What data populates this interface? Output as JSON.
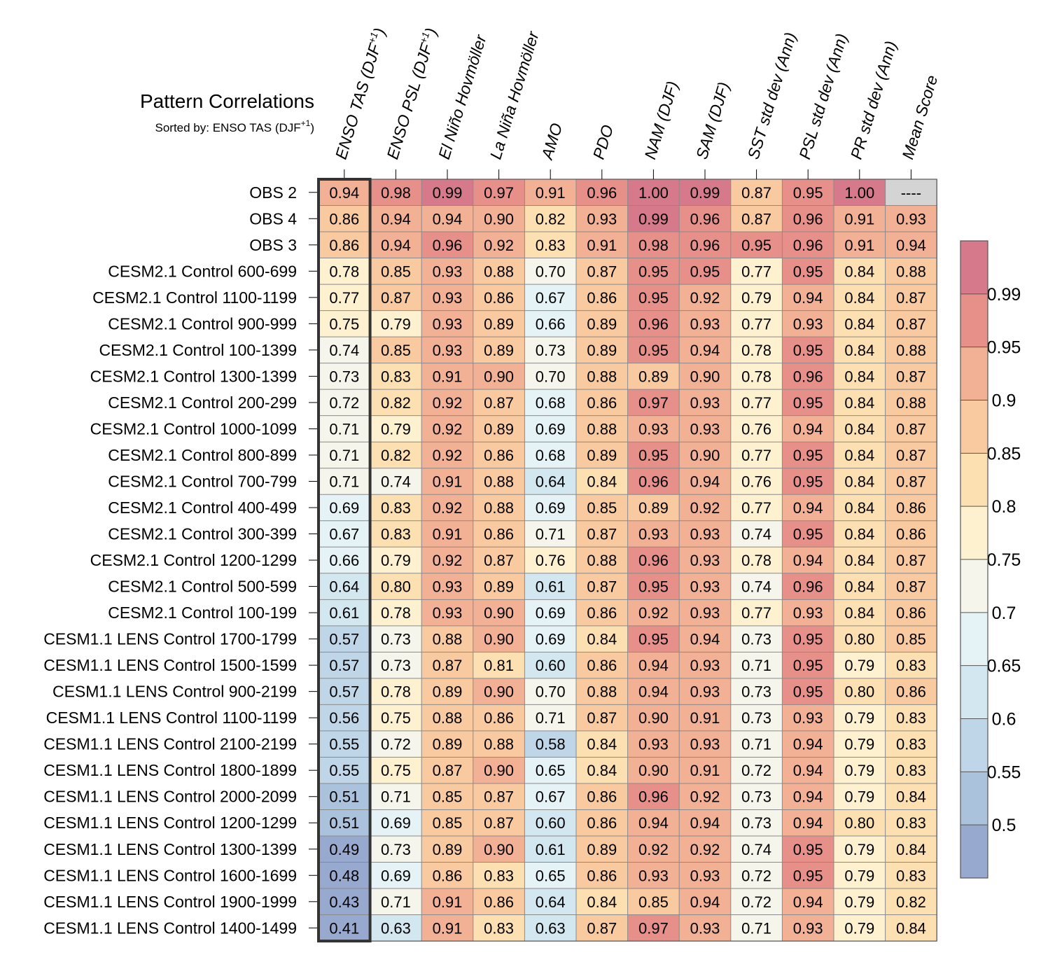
{
  "chart_data": {
    "type": "heatmap",
    "title": "Pattern Correlations",
    "subtitle_prefix": "Sorted by: ENSO TAS (DJF",
    "subtitle_sup": "+1",
    "subtitle_suffix": ")",
    "highlighted_column": "ENSO TAS (DJF+1)",
    "missing_label": "----",
    "columns": [
      {
        "label": "ENSO TAS (DJF",
        "sup": "+1",
        "suffix": ")"
      },
      {
        "label": "ENSO PSL (DJF",
        "sup": "+1",
        "suffix": ")"
      },
      {
        "label": "El Niño Hovmöller",
        "sup": "",
        "suffix": ""
      },
      {
        "label": "La Niña Hovmöller",
        "sup": "",
        "suffix": ""
      },
      {
        "label": "AMO",
        "sup": "",
        "suffix": ""
      },
      {
        "label": "PDO",
        "sup": "",
        "suffix": ""
      },
      {
        "label": "NAM (DJF)",
        "sup": "",
        "suffix": ""
      },
      {
        "label": "SAM (DJF)",
        "sup": "",
        "suffix": ""
      },
      {
        "label": "SST std dev (Ann)",
        "sup": "",
        "suffix": ""
      },
      {
        "label": "PSL std dev (Ann)",
        "sup": "",
        "suffix": ""
      },
      {
        "label": "PR std dev (Ann)",
        "sup": "",
        "suffix": ""
      },
      {
        "label": "Mean Score",
        "sup": "",
        "suffix": ""
      }
    ],
    "rows": [
      "OBS 2",
      "OBS 4",
      "OBS 3",
      "CESM2.1 Control 600-699",
      "CESM2.1 Control 1100-1199",
      "CESM2.1 Control 900-999",
      "CESM2.1 Control 100-1399",
      "CESM2.1 Control 1300-1399",
      "CESM2.1 Control 200-299",
      "CESM2.1 Control 1000-1099",
      "CESM2.1 Control 800-899",
      "CESM2.1 Control 700-799",
      "CESM2.1 Control 400-499",
      "CESM2.1 Control 300-399",
      "CESM2.1 Control 1200-1299",
      "CESM2.1 Control 500-599",
      "CESM2.1 Control 100-199",
      "CESM1.1 LENS Control 1700-1799",
      "CESM1.1 LENS Control 1500-1599",
      "CESM1.1 LENS Control 900-2199",
      "CESM1.1 LENS Control 1100-1199",
      "CESM1.1 LENS Control 2100-2199",
      "CESM1.1 LENS Control 1800-1899",
      "CESM1.1 LENS Control 2000-2099",
      "CESM1.1 LENS Control 1200-1299",
      "CESM1.1 LENS Control 1300-1399",
      "CESM1.1 LENS Control 1600-1699",
      "CESM1.1 LENS Control 1900-1999",
      "CESM1.1 LENS Control 1400-1499"
    ],
    "values": [
      [
        0.94,
        0.98,
        0.99,
        0.97,
        0.91,
        0.96,
        1.0,
        0.99,
        0.87,
        0.95,
        1.0,
        null
      ],
      [
        0.86,
        0.94,
        0.94,
        0.9,
        0.82,
        0.93,
        0.99,
        0.96,
        0.87,
        0.96,
        0.91,
        0.93
      ],
      [
        0.86,
        0.94,
        0.96,
        0.92,
        0.83,
        0.91,
        0.98,
        0.96,
        0.95,
        0.96,
        0.91,
        0.94
      ],
      [
        0.78,
        0.85,
        0.93,
        0.88,
        0.7,
        0.87,
        0.95,
        0.95,
        0.77,
        0.95,
        0.84,
        0.88
      ],
      [
        0.77,
        0.87,
        0.93,
        0.86,
        0.67,
        0.86,
        0.95,
        0.92,
        0.79,
        0.94,
        0.84,
        0.87
      ],
      [
        0.75,
        0.79,
        0.93,
        0.89,
        0.66,
        0.89,
        0.96,
        0.93,
        0.77,
        0.93,
        0.84,
        0.87
      ],
      [
        0.74,
        0.85,
        0.93,
        0.89,
        0.73,
        0.89,
        0.95,
        0.94,
        0.78,
        0.95,
        0.84,
        0.88
      ],
      [
        0.73,
        0.83,
        0.91,
        0.9,
        0.7,
        0.88,
        0.89,
        0.9,
        0.78,
        0.96,
        0.84,
        0.87
      ],
      [
        0.72,
        0.82,
        0.92,
        0.87,
        0.68,
        0.86,
        0.97,
        0.93,
        0.77,
        0.95,
        0.84,
        0.88
      ],
      [
        0.71,
        0.79,
        0.92,
        0.89,
        0.69,
        0.88,
        0.93,
        0.93,
        0.76,
        0.94,
        0.84,
        0.87
      ],
      [
        0.71,
        0.82,
        0.92,
        0.86,
        0.68,
        0.89,
        0.95,
        0.9,
        0.77,
        0.95,
        0.84,
        0.87
      ],
      [
        0.71,
        0.74,
        0.91,
        0.88,
        0.64,
        0.84,
        0.96,
        0.94,
        0.76,
        0.95,
        0.84,
        0.87
      ],
      [
        0.69,
        0.83,
        0.92,
        0.88,
        0.69,
        0.85,
        0.89,
        0.92,
        0.77,
        0.94,
        0.84,
        0.86
      ],
      [
        0.67,
        0.83,
        0.91,
        0.86,
        0.71,
        0.87,
        0.93,
        0.93,
        0.74,
        0.95,
        0.84,
        0.86
      ],
      [
        0.66,
        0.79,
        0.92,
        0.87,
        0.76,
        0.88,
        0.96,
        0.93,
        0.78,
        0.94,
        0.84,
        0.87
      ],
      [
        0.64,
        0.8,
        0.93,
        0.89,
        0.61,
        0.87,
        0.95,
        0.93,
        0.74,
        0.96,
        0.84,
        0.87
      ],
      [
        0.61,
        0.78,
        0.93,
        0.9,
        0.69,
        0.86,
        0.92,
        0.93,
        0.77,
        0.93,
        0.84,
        0.86
      ],
      [
        0.57,
        0.73,
        0.88,
        0.9,
        0.69,
        0.84,
        0.95,
        0.94,
        0.73,
        0.95,
        0.8,
        0.85
      ],
      [
        0.57,
        0.73,
        0.87,
        0.81,
        0.6,
        0.86,
        0.94,
        0.93,
        0.71,
        0.95,
        0.79,
        0.83
      ],
      [
        0.57,
        0.78,
        0.89,
        0.9,
        0.7,
        0.88,
        0.94,
        0.93,
        0.73,
        0.95,
        0.8,
        0.86
      ],
      [
        0.56,
        0.75,
        0.88,
        0.86,
        0.71,
        0.87,
        0.9,
        0.91,
        0.73,
        0.93,
        0.79,
        0.83
      ],
      [
        0.55,
        0.72,
        0.89,
        0.88,
        0.58,
        0.84,
        0.93,
        0.93,
        0.71,
        0.94,
        0.79,
        0.83
      ],
      [
        0.55,
        0.75,
        0.87,
        0.9,
        0.65,
        0.84,
        0.9,
        0.91,
        0.72,
        0.94,
        0.79,
        0.83
      ],
      [
        0.51,
        0.71,
        0.85,
        0.87,
        0.67,
        0.86,
        0.96,
        0.92,
        0.73,
        0.94,
        0.79,
        0.84
      ],
      [
        0.51,
        0.69,
        0.85,
        0.87,
        0.6,
        0.86,
        0.94,
        0.94,
        0.73,
        0.94,
        0.8,
        0.83
      ],
      [
        0.49,
        0.73,
        0.89,
        0.9,
        0.61,
        0.89,
        0.92,
        0.92,
        0.74,
        0.95,
        0.79,
        0.84
      ],
      [
        0.48,
        0.69,
        0.86,
        0.83,
        0.65,
        0.86,
        0.93,
        0.93,
        0.72,
        0.95,
        0.79,
        0.83
      ],
      [
        0.43,
        0.71,
        0.91,
        0.86,
        0.64,
        0.84,
        0.85,
        0.94,
        0.72,
        0.94,
        0.79,
        0.82
      ],
      [
        0.41,
        0.63,
        0.91,
        0.83,
        0.63,
        0.87,
        0.97,
        0.93,
        0.71,
        0.93,
        0.79,
        0.84
      ]
    ],
    "colorbar": {
      "levels": [
        0.5,
        0.55,
        0.6,
        0.65,
        0.7,
        0.75,
        0.8,
        0.85,
        0.9,
        0.95,
        0.99
      ],
      "tick_labels": [
        "0.5",
        "0.55",
        "0.6",
        "0.65",
        "0.7",
        "0.75",
        "0.8",
        "0.85",
        "0.9",
        "0.95",
        "0.99"
      ],
      "colors": [
        "#97a9cf",
        "#abc2dd",
        "#bfd6e8",
        "#d3e7f0",
        "#e5f2f6",
        "#f5f5ec",
        "#fdf1d0",
        "#fde0b2",
        "#f9c9a0",
        "#f2b095",
        "#e7908a",
        "#d6798a"
      ],
      "missing_color": "#d4d4d4"
    }
  }
}
